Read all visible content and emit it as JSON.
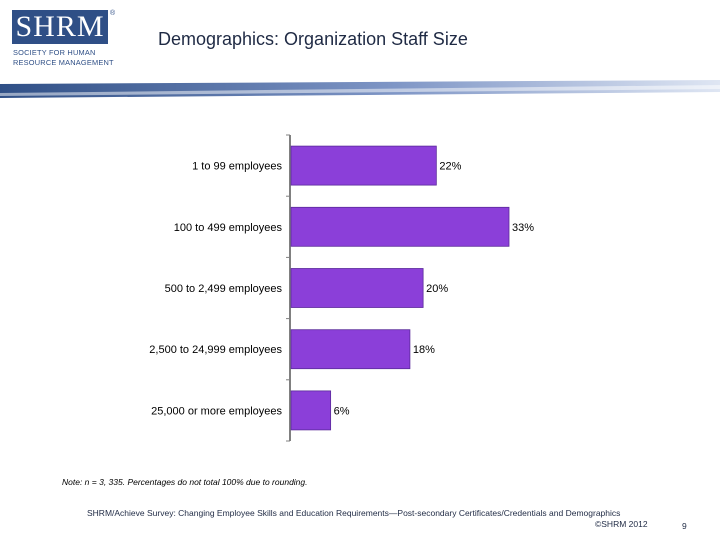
{
  "logo": {
    "text": "SHRM",
    "reg_mark": "®",
    "line1": "SOCIETY FOR HUMAN",
    "line2": "RESOURCE MANAGEMENT"
  },
  "header": {
    "title": "Demographics: Organization Staff Size"
  },
  "colors": {
    "bar": "#8b3fd9",
    "bar_stroke": "#5a2a9a",
    "band_dark": "#2f4f86",
    "band_light": "#c8d4ea"
  },
  "chart_data": {
    "type": "bar",
    "orientation": "horizontal",
    "categories": [
      "1 to 99 employees",
      "100 to 499 employees",
      "500 to 2,499 employees",
      "2,500 to 24,999 employees",
      "25,000 or more employees"
    ],
    "values": [
      22,
      33,
      20,
      18,
      6
    ],
    "value_labels": [
      "22%",
      "33%",
      "20%",
      "18%",
      "6%"
    ],
    "xlim": [
      0,
      40
    ],
    "grid": false
  },
  "footer": {
    "note": "Note: n = 3, 335. Percentages do not total 100% due to rounding.",
    "source": "SHRM/Achieve Survey: Changing Employee Skills and Education Requirements—Post-secondary Certificates/Credentials and Demographics",
    "copyright": "©SHRM 2012",
    "page": "9"
  }
}
